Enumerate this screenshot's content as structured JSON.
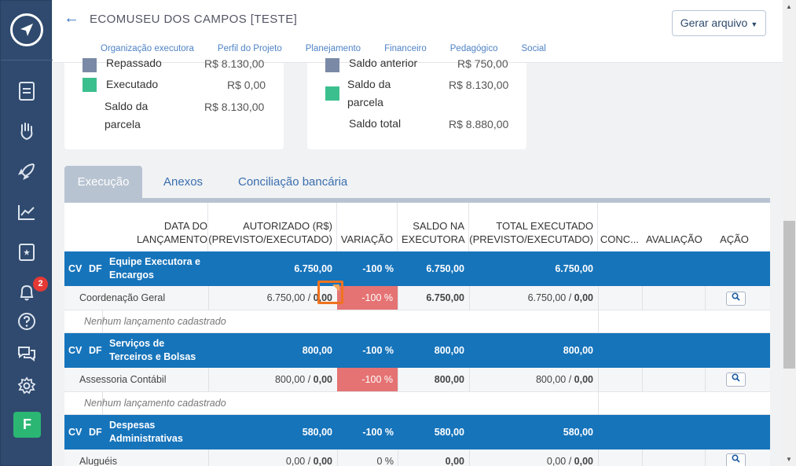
{
  "header": {
    "title": "ECOMUSEU DOS CAMPOS [TESTE]",
    "generate_button": "Gerar arquivo",
    "nav": [
      "Organização executora",
      "Perfil do Projeto",
      "Planejamento",
      "Financeiro",
      "Pedagógico",
      "Social"
    ]
  },
  "sidebar": {
    "notification_count": "2",
    "avatar_letter": "F"
  },
  "card_left": {
    "rows": [
      {
        "label": "Repassado",
        "value": "R$ 8.130,00"
      },
      {
        "label": "Executado",
        "value": "R$ 0,00"
      },
      {
        "label": "Saldo da parcela",
        "value": "R$ 8.130,00"
      }
    ]
  },
  "card_right": {
    "rows": [
      {
        "label": "Saldo anterior",
        "value": "R$ 750,00"
      },
      {
        "label": "Saldo da parcela",
        "value": "R$ 8.130,00"
      },
      {
        "label": "Saldo total",
        "value": "R$ 8.880,00"
      }
    ]
  },
  "tabs": [
    "Execução",
    "Anexos",
    "Conciliação bancária"
  ],
  "columns": {
    "data": "DATA DO LANÇAMENTO",
    "autorizado": "AUTORIZADO (R$) (PREVISTO/EXECUTADO)",
    "variacao": "VARIAÇÃO",
    "saldo": "SALDO NA EXECUTORA",
    "total": "TOTAL EXECUTADO (PREVISTO/EXECUTADO)",
    "conc": "CONC...",
    "avaliacao": "AVALIAÇÃO",
    "acao": "AÇÃO"
  },
  "groups": [
    {
      "cv": "CV",
      "df": "DF",
      "name": "Equipe Executora e Encargos",
      "autorizado": "6.750,00",
      "variacao": "-100 %",
      "saldo": "6.750,00",
      "total": "6.750,00",
      "item": {
        "name": "Coordenação Geral",
        "prev": "6.750,00 / ",
        "exec": "0,00",
        "variacao": "-100 %",
        "saldo": "6.750,00",
        "total_prev": "6.750,00 / ",
        "total_exec": "0,00"
      },
      "empty": "Nenhum lançamento cadastrado"
    },
    {
      "cv": "CV",
      "df": "DF",
      "name": "Serviços de Terceiros e Bolsas",
      "autorizado": "800,00",
      "variacao": "-100 %",
      "saldo": "800,00",
      "total": "800,00",
      "item": {
        "name": "Assessoria Contábil",
        "prev": "800,00 / ",
        "exec": "0,00",
        "variacao": "-100 %",
        "saldo": "800,00",
        "total_prev": "800,00 / ",
        "total_exec": "0,00"
      },
      "empty": "Nenhum lançamento cadastrado"
    },
    {
      "cv": "CV",
      "df": "DF",
      "name": "Despesas Administrativas",
      "autorizado": "580,00",
      "variacao": "-100 %",
      "saldo": "580,00",
      "total": "580,00",
      "item": {
        "name": "Aluguéis",
        "prev": "0,00 / ",
        "exec": "0,00",
        "variacao": "0 %",
        "saldo": "0,00",
        "total_prev": "0,00 / ",
        "total_exec": "0,00"
      }
    }
  ],
  "colors": {
    "group_bg": "#1674bb",
    "negative_bg": "#e57373",
    "sidebar_bg": "#2f4a6e",
    "highlight": "#f0731f"
  }
}
